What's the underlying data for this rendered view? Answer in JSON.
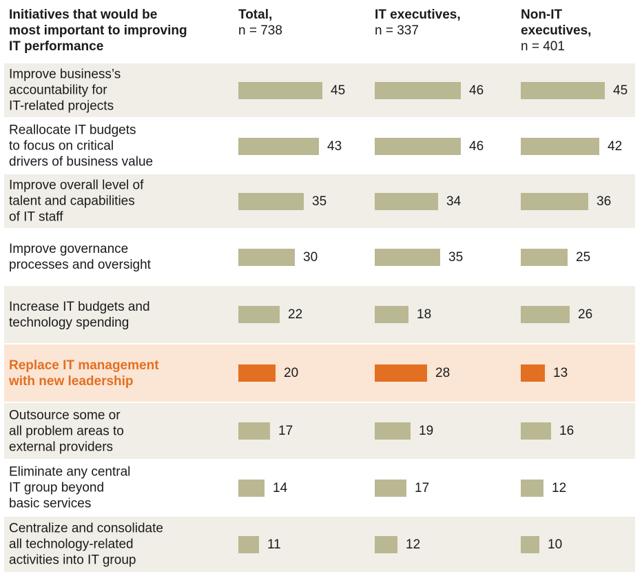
{
  "headers": {
    "label": "Initiatives that would be\nmost important to improving\nIT performance",
    "columns": [
      {
        "title": "Total,",
        "n": "n = 738"
      },
      {
        "title": "IT executives,",
        "n": "n = 337"
      },
      {
        "title": "Non-IT\nexecutives,",
        "n": "n = 401"
      }
    ]
  },
  "colors": {
    "bar": "#bab893",
    "highlight_bar": "#e36f22",
    "row_bg": "#f0eee7",
    "highlight_bg": "#fbe5d4",
    "highlight_text": "#e36f22"
  },
  "chart_data": {
    "type": "bar",
    "orientation": "horizontal",
    "title": "Initiatives that would be most important to improving IT performance",
    "categories": [
      "Improve business’s\naccountability for\nIT-related projects",
      "Reallocate IT budgets\nto focus on critical\ndrivers of business value",
      "Improve overall level of\ntalent and capabilities\nof IT staff",
      "Improve governance\nprocesses and oversight",
      "Increase IT budgets and\ntechnology spending",
      "Replace IT management\nwith new leadership",
      "Outsource some or\nall problem areas to\nexternal providers",
      "Eliminate any central\nIT group beyond\nbasic services",
      "Centralize and consolidate\nall technology-related\nactivities into IT group"
    ],
    "series": [
      {
        "name": "Total, n = 738",
        "values": [
          45,
          43,
          35,
          30,
          22,
          20,
          17,
          14,
          11
        ]
      },
      {
        "name": "IT executives, n = 337",
        "values": [
          46,
          46,
          34,
          35,
          18,
          28,
          19,
          17,
          12
        ]
      },
      {
        "name": "Non-IT executives, n = 401",
        "values": [
          45,
          42,
          36,
          25,
          26,
          13,
          16,
          12,
          10
        ]
      }
    ],
    "highlighted_index": 5,
    "xlim": [
      0,
      50
    ]
  }
}
